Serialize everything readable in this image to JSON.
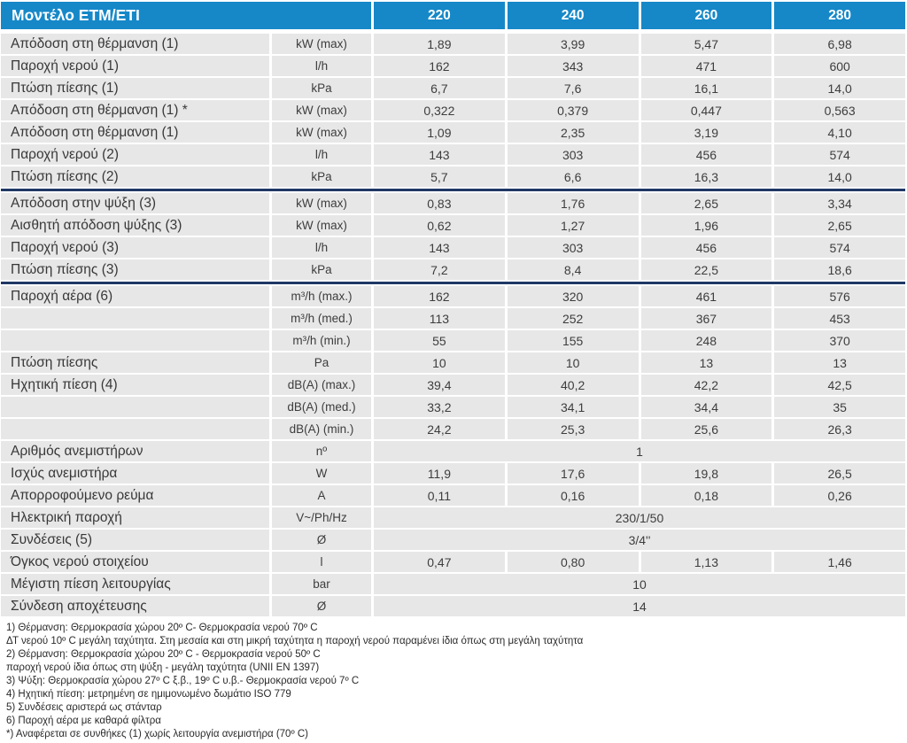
{
  "colors": {
    "header_blue": "#1688c8",
    "divider_navy": "#1f3864",
    "row_gray": "#e7e7e7",
    "text_dark": "#3a3a3a"
  },
  "header": {
    "model_label": "Μοντέλο ETM/ETI",
    "columns": [
      "220",
      "240",
      "260",
      "280"
    ]
  },
  "chart_data": {
    "type": "table",
    "title": "Μοντέλο ETM/ETI",
    "columns": [
      "220",
      "240",
      "260",
      "280"
    ]
  },
  "rows": [
    {
      "label": "Απόδοση στη θέρμανση (1)",
      "unit": "kW (max)",
      "values": [
        "1,89",
        "3,99",
        "5,47",
        "6,98"
      ]
    },
    {
      "label": "Παροχή νερού (1)",
      "unit": "l/h",
      "values": [
        "162",
        "343",
        "471",
        "600"
      ]
    },
    {
      "label": "Πτώση πίεσης (1)",
      "unit": "kPa",
      "values": [
        "6,7",
        "7,6",
        "16,1",
        "14,0"
      ]
    },
    {
      "label": "Απόδοση στη θέρμανση (1) *",
      "unit": "kW (max)",
      "values": [
        "0,322",
        "0,379",
        "0,447",
        "0,563"
      ]
    },
    {
      "label": "Απόδοση στη θέρμανση (1)",
      "unit": "kW (max)",
      "values": [
        "1,09",
        "2,35",
        "3,19",
        "4,10"
      ]
    },
    {
      "label": "Παροχή νερού (2)",
      "unit": "l/h",
      "values": [
        "143",
        "303",
        "456",
        "574"
      ]
    },
    {
      "label": "Πτώση πίεσης (2)",
      "unit": "kPa",
      "values": [
        "5,7",
        "6,6",
        "16,3",
        "14,0"
      ],
      "separator_after": true
    },
    {
      "label": "Απόδοση στην ψύξη (3)",
      "unit": "kW (max)",
      "values": [
        "0,83",
        "1,76",
        "2,65",
        "3,34"
      ]
    },
    {
      "label": "Αισθητή απόδοση ψύξης (3)",
      "unit": "kW (max)",
      "values": [
        "0,62",
        "1,27",
        "1,96",
        "2,65"
      ]
    },
    {
      "label": "Παροχή νερού (3)",
      "unit": "l/h",
      "values": [
        "143",
        "303",
        "456",
        "574"
      ]
    },
    {
      "label": "Πτώση πίεσης (3)",
      "unit": "kPa",
      "values": [
        "7,2",
        "8,4",
        "22,5",
        "18,6"
      ],
      "separator_after": true
    },
    {
      "label": "Παροχή αέρα (6)",
      "unit": "m³/h (max.)",
      "values": [
        "162",
        "320",
        "461",
        "576"
      ]
    },
    {
      "label": "",
      "unit": "m³/h (med.)",
      "values": [
        "113",
        "252",
        "367",
        "453"
      ]
    },
    {
      "label": "",
      "unit": "m³/h (min.)",
      "values": [
        "55",
        "155",
        "248",
        "370"
      ]
    },
    {
      "label": "Πτώση πίεσης",
      "unit": "Pa",
      "values": [
        "10",
        "10",
        "13",
        "13"
      ]
    },
    {
      "label": "Ηχητική πίεση (4)",
      "unit": "dB(A) (max.)",
      "values": [
        "39,4",
        "40,2",
        "42,2",
        "42,5"
      ]
    },
    {
      "label": "",
      "unit": "dB(A) (med.)",
      "values": [
        "33,2",
        "34,1",
        "34,4",
        "35"
      ]
    },
    {
      "label": "",
      "unit": "dB(A) (min.)",
      "values": [
        "24,2",
        "25,3",
        "25,6",
        "26,3"
      ]
    },
    {
      "label": "Αριθμός ανεμιστήρων",
      "unit": "nº",
      "span_value": "1"
    },
    {
      "label": "Ισχύς ανεμιστήρα",
      "unit": "W",
      "values": [
        "11,9",
        "17,6",
        "19,8",
        "26,5"
      ]
    },
    {
      "label": "Απορροφούμενο ρεύμα",
      "unit": "A",
      "values": [
        "0,11",
        "0,16",
        "0,18",
        "0,26"
      ]
    },
    {
      "label": "Ηλεκτρική παροχή",
      "unit": "V~/Ph/Hz",
      "span_value": "230/1/50"
    },
    {
      "label": "Συνδέσεις (5)",
      "unit": "Ø",
      "span_value": "3/4''"
    },
    {
      "label": "Όγκος νερού στοιχείου",
      "unit": "l",
      "values": [
        "0,47",
        "0,80",
        "1,13",
        "1,46"
      ]
    },
    {
      "label": "Μέγιστη πίεση λειτουργίας",
      "unit": "bar",
      "span_value": "10"
    },
    {
      "label": "Σύνδεση αποχέτευσης",
      "unit": "Ø",
      "span_value": "14"
    }
  ],
  "footnotes": [
    "1) Θέρμανση: Θερμοκρασία χώρου 20º C- Θερμοκρασία νερού 70º C",
    "ΔΤ νερού 10º C μεγάλη ταχύτητα. Στη μεσαία και στη μικρή ταχύτητα η παροχή νερού παραμένει ίδια όπως στη μεγάλη ταχύτητα",
    "2) Θέρμανση: Θερμοκρασία χώρου 20º C - Θερμοκρασία νερού 50º C",
    "παροχή νερού ίδια όπως στη ψύξη - μεγάλη ταχύτητα (UNII EN 1397)",
    "3) Ψύξη: Θερμοκρασία χώρου 27º C ξ.β., 19º C υ.β.- Θερμοκρασία νερού 7º C",
    "4) Ηχητική πίεση: μετρημένη σε ημιμονωμένο δωμάτιο ISO 779",
    "5) Συνδέσεις αριστερά ως στάνταρ",
    "6) Παροχή αέρα με καθαρά φίλτρα",
    "*) Αναφέρεται σε συνθήκες (1) χωρίς λειτουργία ανεμιστήρα (70º C)"
  ]
}
